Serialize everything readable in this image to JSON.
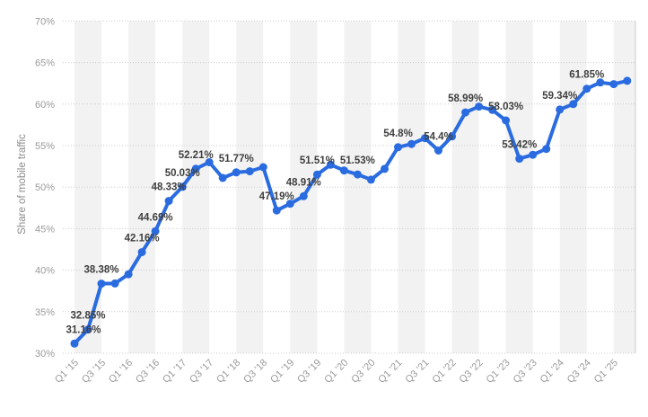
{
  "chart_data": {
    "type": "line",
    "title": "",
    "series_name": "Share of mobile traffic",
    "ylabel": "Share of mobile traffic",
    "xlabel": "",
    "ylim": [
      30,
      70
    ],
    "y_tick_step": 5,
    "y_tick_suffix": "%",
    "grid": "horizontal-dotted",
    "legend": "none",
    "x": [
      "Q1 '15",
      "Q2 '15",
      "Q3 '15",
      "Q4 '15",
      "Q1 '16",
      "Q2 '16",
      "Q3 '16",
      "Q4 '16",
      "Q1 '17",
      "Q2 '17",
      "Q3 '17",
      "Q4 '17",
      "Q1 '18",
      "Q2 '18",
      "Q3 '18",
      "Q4 '18",
      "Q1 '19",
      "Q2 '19",
      "Q3 '19",
      "Q4 '19",
      "Q1 '20",
      "Q2 '20",
      "Q3 '20",
      "Q4 '20",
      "Q1 '21",
      "Q2 '21",
      "Q3 '21",
      "Q4 '21",
      "Q1 '22",
      "Q2 '22",
      "Q3 '22",
      "Q4 '22",
      "Q1 '23",
      "Q2 '23",
      "Q3 '23",
      "Q4 '23",
      "Q1 '24",
      "Q2 '24",
      "Q3 '24",
      "Q4 '24",
      "Q1 '25",
      "Q2 '25"
    ],
    "values": [
      31.16,
      32.85,
      38.38,
      38.4,
      39.5,
      42.16,
      44.69,
      48.33,
      50.03,
      52.21,
      53.0,
      51.1,
      51.77,
      51.9,
      52.4,
      47.19,
      48.0,
      48.91,
      51.51,
      52.7,
      52.0,
      51.53,
      50.9,
      52.2,
      54.8,
      55.2,
      55.9,
      54.4,
      56.1,
      58.99,
      59.7,
      59.3,
      58.03,
      53.42,
      53.9,
      54.6,
      59.34,
      60.0,
      61.85,
      62.6,
      62.4,
      62.8
    ],
    "x_tick_labels": [
      "Q1 '15",
      "Q3 '15",
      "Q1 '16",
      "Q3 '16",
      "Q1 '17",
      "Q3 '17",
      "Q1 '18",
      "Q3 '18",
      "Q1 '19",
      "Q3 '19",
      "Q1 '20",
      "Q3 '20",
      "Q1 '21",
      "Q3 '21",
      "Q1 '22",
      "Q3 '22",
      "Q1 '23",
      "Q3 '23",
      "Q1 '24",
      "Q3 '24",
      "Q1 '25"
    ],
    "data_labels": [
      {
        "index": 0,
        "text": "31.16%"
      },
      {
        "index": 1,
        "text": "32.85%"
      },
      {
        "index": 2,
        "text": "38.38%"
      },
      {
        "index": 5,
        "text": "42.16%"
      },
      {
        "index": 6,
        "text": "44.69%"
      },
      {
        "index": 7,
        "text": "48.33%"
      },
      {
        "index": 8,
        "text": "50.03%"
      },
      {
        "index": 9,
        "text": "52.21%"
      },
      {
        "index": 12,
        "text": "51.77%"
      },
      {
        "index": 15,
        "text": "47.19%"
      },
      {
        "index": 17,
        "text": "48.91%"
      },
      {
        "index": 18,
        "text": "51.51%"
      },
      {
        "index": 21,
        "text": "51.53%"
      },
      {
        "index": 24,
        "text": "54.8%"
      },
      {
        "index": 27,
        "text": "54.4%"
      },
      {
        "index": 29,
        "text": "58.99%"
      },
      {
        "index": 32,
        "text": "58.03%"
      },
      {
        "index": 33,
        "text": "53.42%"
      },
      {
        "index": 36,
        "text": "59.34%"
      },
      {
        "index": 38,
        "text": "61.85%"
      }
    ]
  },
  "colors": {
    "line": "#2a6ce0",
    "marker": "#2a6ce0",
    "data_label": "#3f3f3f",
    "axis_label": "#9a9a9a",
    "axis_title": "#8a8a8a",
    "grid": "#cccccc",
    "plot_band": "#f2f2f2",
    "plot_border": "#cccccc",
    "background": "#ffffff"
  }
}
